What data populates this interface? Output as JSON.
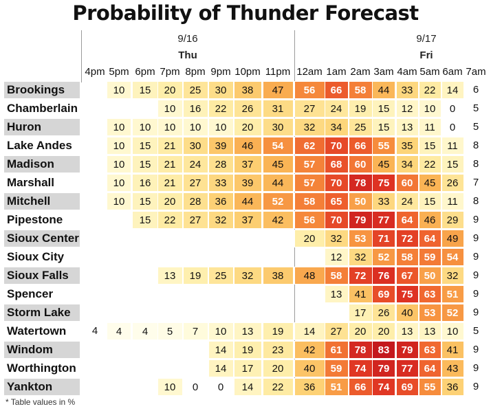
{
  "chart_data": {
    "type": "heatmap",
    "title": "Probability of Thunder Forecast",
    "dates": [
      {
        "date": "9/16",
        "day": "Thu"
      },
      {
        "date": "9/17",
        "day": "Fri"
      }
    ],
    "hours": [
      "4pm",
      "5pm",
      "6pm",
      "7pm",
      "8pm",
      "9pm",
      "10pm",
      "11pm",
      "12am",
      "1am",
      "2am",
      "3am",
      "4am",
      "5am",
      "6am",
      "7am"
    ],
    "rows": [
      {
        "name": "Brookings",
        "values": [
          null,
          10,
          15,
          20,
          25,
          30,
          38,
          47,
          56,
          66,
          58,
          44,
          33,
          22,
          14,
          6
        ]
      },
      {
        "name": "Chamberlain",
        "values": [
          null,
          null,
          null,
          10,
          16,
          22,
          26,
          31,
          27,
          24,
          19,
          15,
          12,
          10,
          0,
          5
        ]
      },
      {
        "name": "Huron",
        "values": [
          null,
          10,
          10,
          10,
          10,
          10,
          20,
          30,
          32,
          34,
          25,
          15,
          13,
          11,
          0,
          5
        ]
      },
      {
        "name": "Lake Andes",
        "values": [
          null,
          10,
          15,
          21,
          30,
          39,
          46,
          54,
          62,
          70,
          66,
          55,
          35,
          15,
          11,
          8
        ]
      },
      {
        "name": "Madison",
        "values": [
          null,
          10,
          15,
          21,
          24,
          28,
          37,
          45,
          57,
          68,
          60,
          45,
          34,
          22,
          15,
          8
        ]
      },
      {
        "name": "Marshall",
        "values": [
          null,
          10,
          16,
          21,
          27,
          33,
          39,
          44,
          57,
          70,
          78,
          75,
          60,
          45,
          26,
          7
        ]
      },
      {
        "name": "Mitchell",
        "values": [
          null,
          10,
          15,
          20,
          28,
          36,
          44,
          52,
          58,
          65,
          50,
          33,
          24,
          15,
          11,
          8
        ]
      },
      {
        "name": "Pipestone",
        "values": [
          null,
          null,
          15,
          22,
          27,
          32,
          37,
          42,
          56,
          70,
          79,
          77,
          64,
          46,
          29,
          9
        ]
      },
      {
        "name": "Sioux Center",
        "values": [
          null,
          null,
          null,
          null,
          null,
          null,
          null,
          null,
          20,
          32,
          53,
          71,
          72,
          64,
          49,
          9
        ]
      },
      {
        "name": "Sioux City",
        "values": [
          null,
          null,
          null,
          null,
          null,
          null,
          null,
          null,
          null,
          12,
          32,
          52,
          58,
          59,
          54,
          9
        ]
      },
      {
        "name": "Sioux Falls",
        "values": [
          null,
          null,
          null,
          13,
          19,
          25,
          32,
          38,
          48,
          58,
          72,
          76,
          67,
          50,
          32,
          9
        ]
      },
      {
        "name": "Spencer",
        "values": [
          null,
          null,
          null,
          null,
          null,
          null,
          null,
          null,
          null,
          13,
          41,
          69,
          75,
          63,
          51,
          9
        ]
      },
      {
        "name": "Storm Lake",
        "values": [
          null,
          null,
          null,
          null,
          null,
          null,
          null,
          null,
          null,
          null,
          17,
          26,
          40,
          53,
          52,
          9
        ]
      },
      {
        "name": "Watertown",
        "values": [
          4,
          4,
          4,
          5,
          7,
          10,
          13,
          19,
          14,
          27,
          20,
          20,
          13,
          13,
          10,
          5
        ]
      },
      {
        "name": "Windom",
        "values": [
          null,
          null,
          null,
          null,
          null,
          14,
          19,
          23,
          42,
          61,
          78,
          83,
          79,
          63,
          41,
          9
        ]
      },
      {
        "name": "Worthington",
        "values": [
          null,
          null,
          null,
          null,
          null,
          14,
          17,
          20,
          40,
          59,
          74,
          79,
          77,
          64,
          43,
          9
        ]
      },
      {
        "name": "Yankton",
        "values": [
          null,
          null,
          null,
          10,
          0,
          0,
          14,
          22,
          36,
          51,
          66,
          74,
          69,
          55,
          36,
          9
        ]
      }
    ],
    "footnote": "* Table values in %"
  }
}
